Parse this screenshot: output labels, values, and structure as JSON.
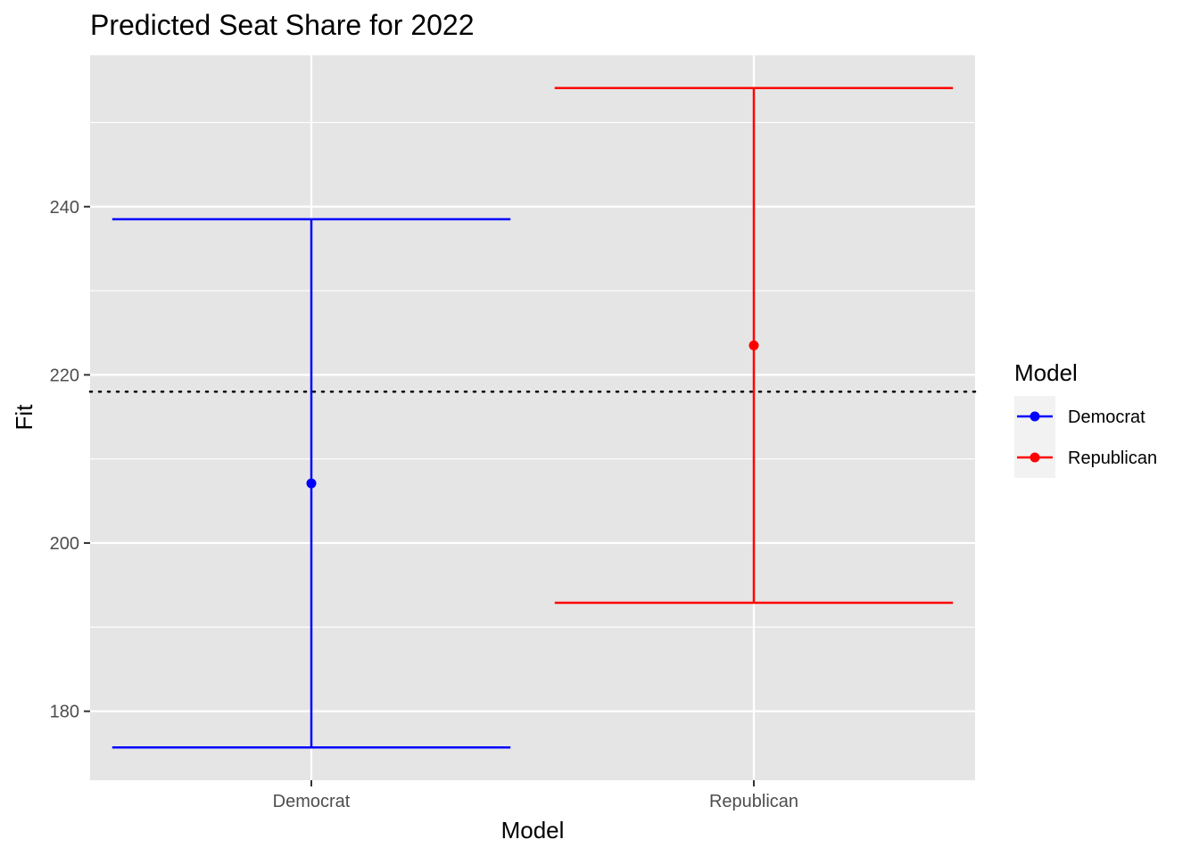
{
  "chart_data": {
    "type": "errorbar",
    "title": "Predicted Seat Share for 2022",
    "xlabel": "Model",
    "ylabel": "Fit",
    "categories": [
      "Democrat",
      "Republican"
    ],
    "series": [
      {
        "name": "Democrat",
        "color": "#0000ff",
        "fit": 207.1,
        "lower": 175.7,
        "upper": 238.5
      },
      {
        "name": "Republican",
        "color": "#ff0000",
        "fit": 223.5,
        "lower": 192.9,
        "upper": 254.1
      }
    ],
    "reference_line": {
      "y": 218,
      "style": "dotted",
      "color": "#000000"
    },
    "ylim": [
      171.8,
      258.0
    ],
    "y_ticks": [
      180,
      200,
      220,
      240
    ],
    "grid": true,
    "panel_background": "#e5e5e5",
    "grid_color": "#ffffff",
    "legend": {
      "title": "Model",
      "position": "right",
      "entries": [
        "Democrat",
        "Republican"
      ]
    }
  }
}
